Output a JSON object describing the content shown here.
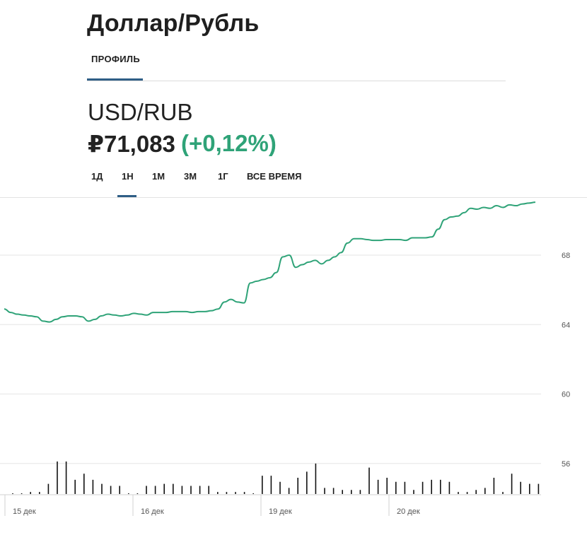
{
  "header": {
    "title": "Доллар/Рубль",
    "tabs": [
      {
        "label": "ПРОФИЛЬ",
        "active": true
      }
    ]
  },
  "quote": {
    "pair": "USD/RUB",
    "price": "₽71,083",
    "change": "(+0,12%)",
    "change_color": "#2fa378"
  },
  "periods": [
    {
      "label": "1Д",
      "active": false
    },
    {
      "label": "1Н",
      "active": true
    },
    {
      "label": "1М",
      "active": false
    },
    {
      "label": "3М",
      "active": false
    },
    {
      "label": "1Г",
      "active": false
    },
    {
      "label": "ВСЕ ВРЕМЯ",
      "active": false
    }
  ],
  "colors": {
    "line": "#2fa378",
    "accent": "#2f5e86",
    "volume": "#111111",
    "grid": "#e6e6e6"
  },
  "chart_data": {
    "type": "line",
    "grid": true,
    "y_axis": {
      "ticks": [
        "68",
        "64",
        "60",
        "56"
      ],
      "range": [
        54.2,
        71.3
      ],
      "position": "right"
    },
    "x_axis": {
      "ticks": [
        "15 дек",
        "16 дек",
        "19 дек",
        "20 дек"
      ]
    },
    "series": [
      {
        "values": [
          64.9,
          64.7,
          64.6,
          64.55,
          64.5,
          64.45,
          64.2,
          64.15,
          64.3,
          64.45,
          64.5,
          64.5,
          64.45,
          64.2,
          64.3,
          64.5,
          64.6,
          64.55,
          64.5,
          64.55,
          64.65,
          64.6,
          64.55,
          64.7,
          64.7,
          64.7,
          64.75,
          64.75,
          64.75,
          64.7,
          64.75,
          64.75,
          64.8,
          64.9,
          65.3,
          65.45,
          65.3,
          65.25,
          66.4,
          66.5,
          66.6,
          66.7,
          67.0,
          67.9,
          68.0,
          67.3,
          67.45,
          67.6,
          67.7,
          67.5,
          67.7,
          67.9,
          68.15,
          68.7,
          68.95,
          68.95,
          68.9,
          68.85,
          68.85,
          68.9,
          68.9,
          68.9,
          68.85,
          69.0,
          69.0,
          69.0,
          69.05,
          69.5,
          70.05,
          70.2,
          70.25,
          70.45,
          70.7,
          70.65,
          70.75,
          70.7,
          70.85,
          70.75,
          70.9,
          70.85,
          70.95,
          71.0,
          71.05
        ]
      }
    ],
    "volume": [
      0,
      0,
      1,
      1,
      5,
      16,
      16,
      7,
      10,
      7,
      5,
      4,
      4,
      0,
      0,
      4,
      4,
      5,
      5,
      4,
      4,
      4,
      4,
      1,
      1,
      1,
      1,
      0,
      9,
      9,
      6,
      3,
      8,
      11,
      15,
      3,
      3,
      2,
      2,
      2,
      13,
      7,
      8,
      6,
      6,
      2,
      6,
      7,
      7,
      6,
      1,
      1,
      2,
      3,
      8,
      1,
      10,
      6,
      5,
      5
    ]
  }
}
